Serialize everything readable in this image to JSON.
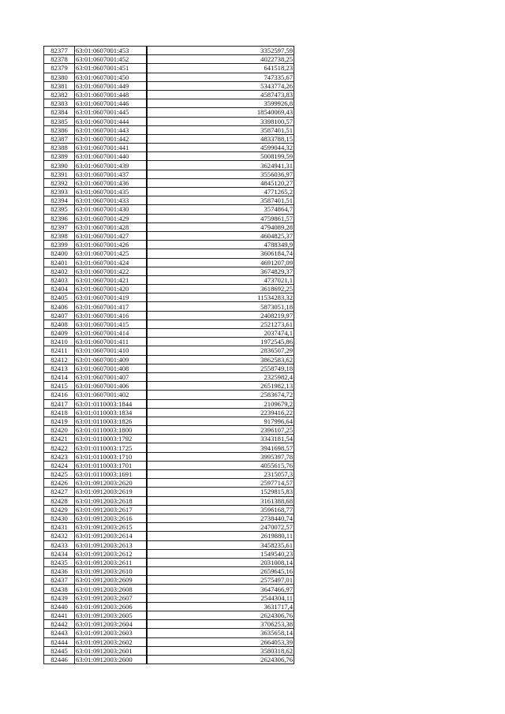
{
  "rows": [
    [
      "82377",
      "63:01:0607001:453",
      "3352597,59"
    ],
    [
      "82378",
      "63:01:0607001:452",
      "4022738,25"
    ],
    [
      "82379",
      "63:01:0607001:451",
      "641518,23"
    ],
    [
      "82380",
      "63:01:0607001:450",
      "747335,67"
    ],
    [
      "82381",
      "63:01:0607001:449",
      "5343774,26"
    ],
    [
      "82382",
      "63:01:0607001:448",
      "4587473,83"
    ],
    [
      "82383",
      "63:01:0607001:446",
      "3599926,8"
    ],
    [
      "82384",
      "63:01:0607001:445",
      "18540069,43"
    ],
    [
      "82385",
      "63:01:0607001:444",
      "3398100,57"
    ],
    [
      "82386",
      "63:01:0607001:443",
      "3587401,51"
    ],
    [
      "82387",
      "63:01:0607001:442",
      "4833788,15"
    ],
    [
      "82388",
      "63:01:0607001:441",
      "4599044,32"
    ],
    [
      "82389",
      "63:01:0607001:440",
      "5008199,59"
    ],
    [
      "82390",
      "63:01:0607001:439",
      "3624941,31"
    ],
    [
      "82391",
      "63:01:0607001:437",
      "3556036,97"
    ],
    [
      "82392",
      "63:01:0607001:436",
      "4845120,27"
    ],
    [
      "82393",
      "63:01:0607001:435",
      "4771265,2"
    ],
    [
      "82394",
      "63:01:0607001:433",
      "3587401,51"
    ],
    [
      "82395",
      "63:01:0607001:430",
      "3574864,7"
    ],
    [
      "82396",
      "63:01:0607001:429",
      "4759861,57"
    ],
    [
      "82397",
      "63:01:0607001:428",
      "4794089,28"
    ],
    [
      "82398",
      "63:01:0607001:427",
      "4604825,37"
    ],
    [
      "82399",
      "63:01:0607001:426",
      "4788349,9"
    ],
    [
      "82400",
      "63:01:0607001:425",
      "3606184,74"
    ],
    [
      "82401",
      "63:01:0607001:424",
      "4691207,09"
    ],
    [
      "82402",
      "63:01:0607001:422",
      "3674829,37"
    ],
    [
      "82403",
      "63:01:0607001:421",
      "4737021,1"
    ],
    [
      "82404",
      "63:01:0607001:420",
      "3618692,25"
    ],
    [
      "82405",
      "63:01:0607001:419",
      "11534283,32"
    ],
    [
      "82406",
      "63:01:0607001:417",
      "5873051,18"
    ],
    [
      "82407",
      "63:01:0607001:416",
      "2408219,97"
    ],
    [
      "82408",
      "63:01:0607001:415",
      "2521273,61"
    ],
    [
      "82409",
      "63:01:0607001:414",
      "2037474,1"
    ],
    [
      "82410",
      "63:01:0607001:411",
      "1972545,86"
    ],
    [
      "82411",
      "63:01:0607001:410",
      "2836507,29"
    ],
    [
      "82412",
      "63:01:0607001:409",
      "3862583,62"
    ],
    [
      "82413",
      "63:01:0607001:408",
      "2558749,18"
    ],
    [
      "82414",
      "63:01:0607001:407",
      "2325982,4"
    ],
    [
      "82415",
      "63:01:0607001:406",
      "2651982,13"
    ],
    [
      "82416",
      "63:01:0607001:402",
      "2583674,72"
    ],
    [
      "82417",
      "63:01:0110003:1844",
      "2109679,2"
    ],
    [
      "82418",
      "63:01:0110003:1834",
      "2239416,22"
    ],
    [
      "82419",
      "63:01:0110003:1826",
      "917996,64"
    ],
    [
      "82420",
      "63:01:0110003:1800",
      "2396107,25"
    ],
    [
      "82421",
      "63:01:0110003:1792",
      "3343181,54"
    ],
    [
      "82422",
      "63:01:0110003:1725",
      "3941698,57"
    ],
    [
      "82423",
      "63:01:0110003:1710",
      "3995397,78"
    ],
    [
      "82424",
      "63:01:0110003:1701",
      "4055615,76"
    ],
    [
      "82425",
      "63:01:0110003:1691",
      "2315057,3"
    ],
    [
      "82426",
      "63:01:0912003:2620",
      "2597714,57"
    ],
    [
      "82427",
      "63:01:0912003:2619",
      "1529815,83"
    ],
    [
      "82428",
      "63:01:0912003:2618",
      "3161388,68"
    ],
    [
      "82429",
      "63:01:0912003:2617",
      "3596168,77"
    ],
    [
      "82430",
      "63:01:0912003:2616",
      "2738440,74"
    ],
    [
      "82431",
      "63:01:0912003:2615",
      "2470072,57"
    ],
    [
      "82432",
      "63:01:0912003:2614",
      "2619880,11"
    ],
    [
      "82433",
      "63:01:0912003:2613",
      "3458235,61"
    ],
    [
      "82434",
      "63:01:0912003:2612",
      "1549540,23"
    ],
    [
      "82435",
      "63:01:0912003:2611",
      "2031008,14"
    ],
    [
      "82436",
      "63:01:0912003:2610",
      "2659645,16"
    ],
    [
      "82437",
      "63:01:0912003:2609",
      "2575497,01"
    ],
    [
      "82438",
      "63:01:0912003:2608",
      "3647466,97"
    ],
    [
      "82439",
      "63:01:0912003:2607",
      "2544304,11"
    ],
    [
      "82440",
      "63:01:0912003:2606",
      "3631717,4"
    ],
    [
      "82441",
      "63:01:0912003:2605",
      "2624306,76"
    ],
    [
      "82442",
      "63:01:0912003:2604",
      "3706253,38"
    ],
    [
      "82443",
      "63:01:0912003:2603",
      "3635658,14"
    ],
    [
      "82444",
      "63:01:0912003:2602",
      "2664053,39"
    ],
    [
      "82445",
      "63:01:0912003:2601",
      "3580318,62"
    ],
    [
      "82446",
      "63:01:0912003:2600",
      "2624306,76"
    ]
  ]
}
